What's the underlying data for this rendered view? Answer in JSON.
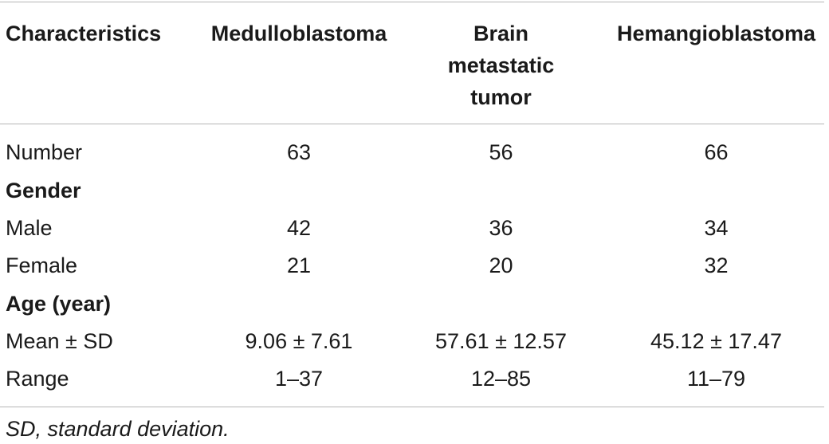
{
  "table": {
    "headers": {
      "characteristics": "Characteristics",
      "medulloblastoma": "Medulloblastoma",
      "brain_metastatic_tumor": [
        "Brain",
        "metastatic",
        "tumor"
      ],
      "hemangioblastoma": "Hemangioblastoma"
    },
    "rows": [
      {
        "label": "Number",
        "medulloblastoma": "63",
        "brain_metastatic_tumor": "56",
        "hemangioblastoma": "66",
        "section": false
      },
      {
        "label": "Gender",
        "medulloblastoma": "",
        "brain_metastatic_tumor": "",
        "hemangioblastoma": "",
        "section": true
      },
      {
        "label": "Male",
        "medulloblastoma": "42",
        "brain_metastatic_tumor": "36",
        "hemangioblastoma": "34",
        "section": false
      },
      {
        "label": "Female",
        "medulloblastoma": "21",
        "brain_metastatic_tumor": "20",
        "hemangioblastoma": "32",
        "section": false
      },
      {
        "label": "Age (year)",
        "medulloblastoma": "",
        "brain_metastatic_tumor": "",
        "hemangioblastoma": "",
        "section": true
      },
      {
        "label": "Mean ± SD",
        "medulloblastoma": "9.06 ± 7.61",
        "brain_metastatic_tumor": "57.61 ± 12.57",
        "hemangioblastoma": "45.12 ± 17.47",
        "section": false
      },
      {
        "label": "Range",
        "medulloblastoma": "1–37",
        "brain_metastatic_tumor": "12–85",
        "hemangioblastoma": "11–79",
        "section": false
      }
    ],
    "footnote": "SD, standard deviation."
  }
}
